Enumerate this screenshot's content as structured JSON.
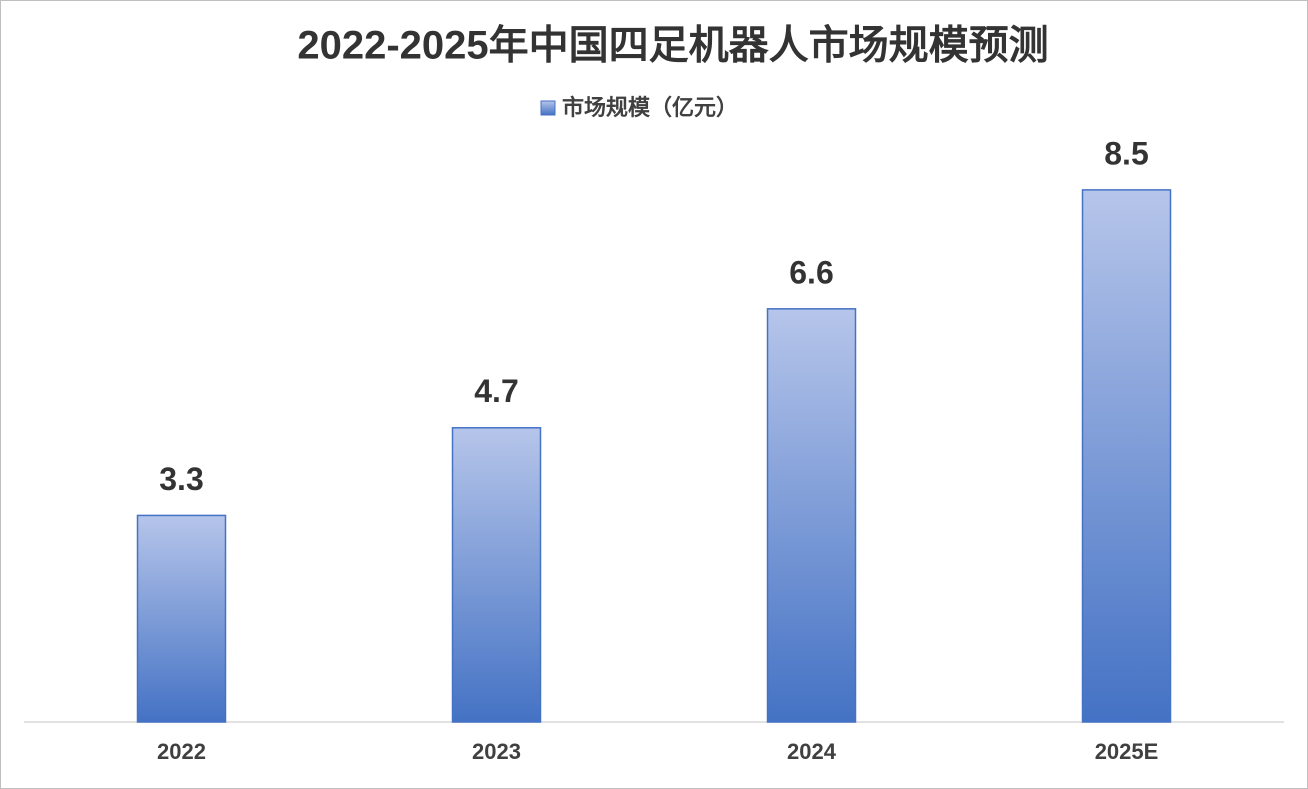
{
  "chart_data": {
    "type": "bar",
    "title": "2022-2025年中国四足机器人市场规模预测",
    "categories": [
      "2022",
      "2023",
      "2024",
      "2025E"
    ],
    "series": [
      {
        "name": "市场规模（亿元）",
        "color": "#4472c4",
        "values": [
          3.3,
          4.7,
          6.6,
          8.5
        ]
      }
    ],
    "ylim": [
      0,
      10
    ],
    "grid": false,
    "legend": "top"
  }
}
